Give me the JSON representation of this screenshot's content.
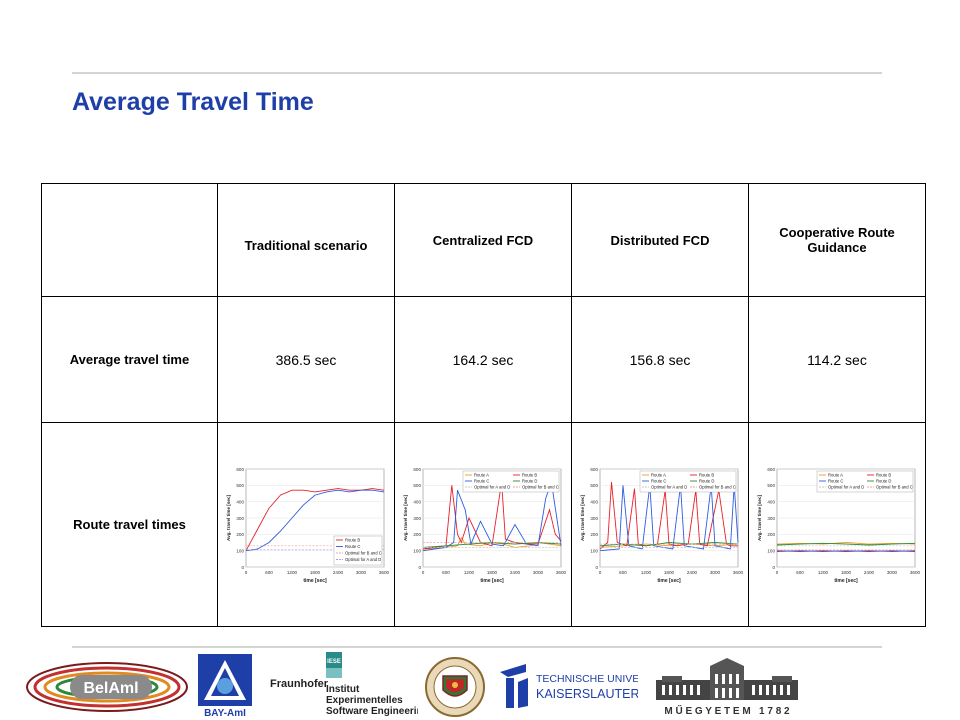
{
  "title": "Average Travel Time",
  "table": {
    "columns": [
      "Traditional scenario",
      "Centralized FCD",
      "Distributed FCD",
      "Cooperative Route Guidance"
    ],
    "rows": [
      {
        "label": "Average travel time",
        "values": [
          "386.5 sec",
          "164.2 sec",
          "156.8 sec",
          "114.2 sec"
        ]
      },
      {
        "label": "Route travel times"
      }
    ]
  },
  "chart_data": [
    {
      "type": "line",
      "ylabel": "Avg. travel time [sec]",
      "xlabel": "time [sec]",
      "xticks": [
        "0",
        "600",
        "1200",
        "1800",
        "2400",
        "3000",
        "3600"
      ],
      "yticks": [
        "0",
        "100",
        "200",
        "300",
        "400",
        "500",
        "600"
      ],
      "xlim": [
        0,
        3600
      ],
      "ylim": [
        0,
        600
      ],
      "legend_position": "bottom-right",
      "series": [
        {
          "name": "Route B",
          "color": "#e8202a",
          "style": "solid",
          "x": [
            0,
            300,
            600,
            900,
            1200,
            1500,
            1800,
            2100,
            2400,
            2700,
            3000,
            3300,
            3600
          ],
          "values": [
            100,
            230,
            360,
            440,
            470,
            470,
            460,
            470,
            480,
            470,
            470,
            480,
            470
          ]
        },
        {
          "name": "Route C",
          "color": "#2d5ce0",
          "style": "solid",
          "x": [
            0,
            300,
            600,
            900,
            1200,
            1500,
            1800,
            2100,
            2400,
            2700,
            3000,
            3300,
            3600
          ],
          "values": [
            100,
            110,
            150,
            220,
            300,
            380,
            440,
            460,
            470,
            460,
            470,
            470,
            460
          ]
        },
        {
          "name": "Optimal for B and C",
          "color": "#f2a0a0",
          "style": "dashed",
          "x": [
            0,
            3600
          ],
          "values": [
            130,
            130
          ]
        },
        {
          "name": "Optimal for A and D",
          "color": "#a0a0f2",
          "style": "dashed",
          "x": [
            0,
            3600
          ],
          "values": [
            105,
            105
          ]
        }
      ]
    },
    {
      "type": "line",
      "ylabel": "Avg. travel time [sec]",
      "xlabel": "time [sec]",
      "xticks": [
        "0",
        "600",
        "1200",
        "1800",
        "2400",
        "3000",
        "3600"
      ],
      "yticks": [
        "0",
        "100",
        "200",
        "300",
        "400",
        "500",
        "600"
      ],
      "xlim": [
        0,
        3600
      ],
      "ylim": [
        0,
        600
      ],
      "legend_position": "top-right",
      "series": [
        {
          "name": "Route A",
          "color": "#e8a020",
          "style": "solid",
          "x": [
            0,
            600,
            900,
            1000,
            1100,
            1500,
            1800,
            2100,
            2400,
            2800,
            3000,
            3300,
            3600
          ],
          "values": [
            110,
            120,
            130,
            180,
            140,
            130,
            150,
            140,
            120,
            130,
            150,
            140,
            130
          ]
        },
        {
          "name": "Route B",
          "color": "#e8202a",
          "style": "solid",
          "x": [
            0,
            300,
            600,
            750,
            900,
            1000,
            1200,
            1500,
            1800,
            2050,
            2150,
            2400,
            2700,
            3000,
            3300,
            3450,
            3600
          ],
          "values": [
            110,
            120,
            130,
            500,
            200,
            150,
            300,
            150,
            130,
            520,
            170,
            150,
            140,
            140,
            350,
            200,
            160
          ]
        },
        {
          "name": "Route C",
          "color": "#2d5ce0",
          "style": "solid",
          "x": [
            0,
            300,
            600,
            800,
            900,
            1100,
            1250,
            1500,
            1800,
            2100,
            2400,
            2700,
            3000,
            3200,
            3350,
            3600
          ],
          "values": [
            100,
            110,
            120,
            150,
            470,
            350,
            140,
            280,
            140,
            130,
            260,
            140,
            130,
            420,
            520,
            130
          ]
        },
        {
          "name": "Route D",
          "color": "#2a8a3a",
          "style": "solid",
          "x": [
            0,
            600,
            1200,
            1800,
            2400,
            3000,
            3600
          ],
          "values": [
            120,
            130,
            140,
            150,
            140,
            150,
            140
          ]
        },
        {
          "name": "Optimal for A and D",
          "color": "#c8c8c8",
          "style": "dashed",
          "x": [
            0,
            3600
          ],
          "values": [
            120,
            120
          ]
        },
        {
          "name": "Optimal for B and C",
          "color": "#f2a0a0",
          "style": "dashed",
          "x": [
            0,
            3600
          ],
          "values": [
            150,
            150
          ]
        }
      ]
    },
    {
      "type": "line",
      "ylabel": "Avg. travel time [sec]",
      "xlabel": "time [sec]",
      "xticks": [
        "0",
        "600",
        "1200",
        "1800",
        "2400",
        "3000",
        "3600"
      ],
      "yticks": [
        "0",
        "100",
        "200",
        "300",
        "400",
        "500",
        "600"
      ],
      "xlim": [
        0,
        3600
      ],
      "ylim": [
        0,
        600
      ],
      "legend_position": "top-right",
      "series": [
        {
          "name": "Route A",
          "color": "#e8a020",
          "style": "solid",
          "x": [
            0,
            600,
            1200,
            1800,
            2400,
            3000,
            3600
          ],
          "values": [
            120,
            130,
            140,
            130,
            140,
            130,
            140
          ]
        },
        {
          "name": "Route B",
          "color": "#e8202a",
          "style": "solid",
          "x": [
            0,
            200,
            300,
            450,
            700,
            900,
            1000,
            1200,
            1500,
            1700,
            1800,
            2000,
            2300,
            2500,
            2600,
            2800,
            3100,
            3300,
            3400,
            3600
          ],
          "values": [
            110,
            150,
            520,
            150,
            130,
            480,
            140,
            130,
            140,
            470,
            140,
            130,
            140,
            470,
            140,
            130,
            470,
            140,
            130,
            130
          ]
        },
        {
          "name": "Route C",
          "color": "#2d5ce0",
          "style": "solid",
          "x": [
            0,
            500,
            600,
            750,
            1100,
            1300,
            1400,
            1900,
            2100,
            2200,
            2700,
            2900,
            3000,
            3400,
            3500,
            3600
          ],
          "values": [
            100,
            110,
            500,
            130,
            110,
            500,
            130,
            110,
            500,
            130,
            110,
            500,
            130,
            110,
            500,
            150
          ]
        },
        {
          "name": "Route D",
          "color": "#2a8a3a",
          "style": "solid",
          "x": [
            0,
            600,
            1200,
            1800,
            2400,
            3000,
            3600
          ],
          "values": [
            130,
            140,
            130,
            150,
            140,
            150,
            140
          ]
        },
        {
          "name": "Optimal for A and D",
          "color": "#c8c8c8",
          "style": "dashed",
          "x": [
            0,
            3600
          ],
          "values": [
            120,
            120
          ]
        },
        {
          "name": "Optimal for B and C",
          "color": "#f2a0a0",
          "style": "dashed",
          "x": [
            0,
            3600
          ],
          "values": [
            140,
            140
          ]
        }
      ]
    },
    {
      "type": "line",
      "ylabel": "Avg. travel time [sec]",
      "xlabel": "time [sec]",
      "xticks": [
        "0",
        "600",
        "1200",
        "1800",
        "2400",
        "3000",
        "3600"
      ],
      "yticks": [
        "0",
        "100",
        "200",
        "300",
        "400",
        "500",
        "600"
      ],
      "xlim": [
        0,
        3600
      ],
      "ylim": [
        0,
        600
      ],
      "legend_position": "top-right",
      "series": [
        {
          "name": "Route A",
          "color": "#e8a020",
          "style": "solid",
          "x": [
            0,
            600,
            1200,
            1800,
            2400,
            3000,
            3600
          ],
          "values": [
            140,
            145,
            140,
            150,
            140,
            145,
            140
          ]
        },
        {
          "name": "Route B",
          "color": "#e8202a",
          "style": "solid",
          "x": [
            0,
            600,
            1200,
            1800,
            2400,
            3000,
            3600
          ],
          "values": [
            95,
            100,
            95,
            100,
            95,
            100,
            95
          ]
        },
        {
          "name": "Route C",
          "color": "#2d5ce0",
          "style": "solid",
          "x": [
            0,
            600,
            1200,
            1800,
            2400,
            3000,
            3600
          ],
          "values": [
            100,
            95,
            100,
            95,
            100,
            95,
            100
          ]
        },
        {
          "name": "Route D",
          "color": "#2a8a3a",
          "style": "solid",
          "x": [
            0,
            600,
            1200,
            1800,
            2400,
            3000,
            3600
          ],
          "values": [
            135,
            140,
            145,
            140,
            135,
            140,
            145
          ]
        },
        {
          "name": "Optimal for A and D",
          "color": "#c8c8c8",
          "style": "dashed",
          "x": [
            0,
            3600
          ],
          "values": [
            130,
            130
          ]
        },
        {
          "name": "Optimal for B and C",
          "color": "#f2a0a0",
          "style": "dashed",
          "x": [
            0,
            3600
          ],
          "values": [
            105,
            105
          ]
        }
      ]
    }
  ],
  "logos": {
    "belaml": "BelAml",
    "bayaml": "BAY-AmI",
    "fraunhofer": "Fraunhofer",
    "iese_badge": "IESE",
    "iese_lines": [
      "Institut",
      "Experimentelles",
      "Software Engineering"
    ],
    "tu_line1": "TECHNISCHE UNIVERSITÄT",
    "tu_line2": "KAISERSLAUTERN",
    "muegyetem": "M Ű E G Y E T E M   1 7 8 2"
  }
}
